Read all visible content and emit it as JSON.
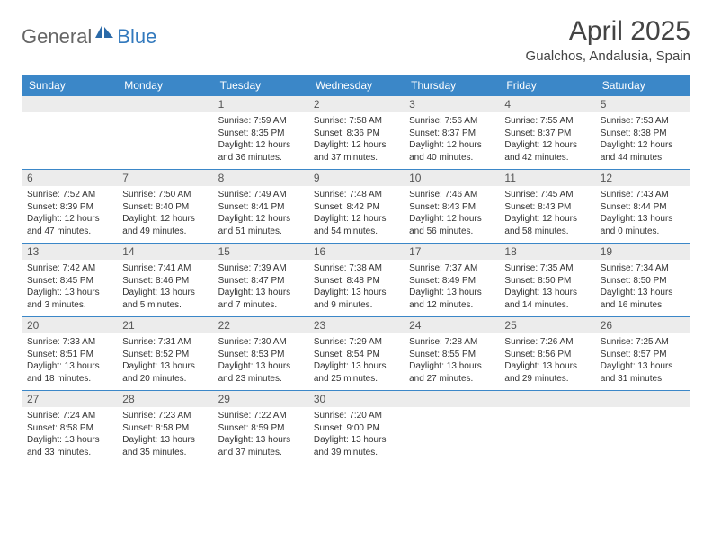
{
  "brand": {
    "part1": "General",
    "part2": "Blue"
  },
  "title": "April 2025",
  "location": "Gualchos, Andalusia, Spain",
  "colors": {
    "header_bg": "#3b87c8",
    "header_text": "#ffffff",
    "daynum_bg": "#ececec",
    "row_border": "#3b87c8",
    "brand_gray": "#666666",
    "brand_blue": "#3279bd",
    "text": "#333333",
    "background": "#ffffff"
  },
  "typography": {
    "title_fontsize": 30,
    "location_fontsize": 15,
    "dayhead_fontsize": 12,
    "daynum_fontsize": 12,
    "detail_fontsize": 10,
    "logo_fontsize": 22
  },
  "day_headers": [
    "Sunday",
    "Monday",
    "Tuesday",
    "Wednesday",
    "Thursday",
    "Friday",
    "Saturday"
  ],
  "weeks": [
    [
      null,
      null,
      {
        "n": "1",
        "sunrise": "Sunrise: 7:59 AM",
        "sunset": "Sunset: 8:35 PM",
        "day1": "Daylight: 12 hours",
        "day2": "and 36 minutes."
      },
      {
        "n": "2",
        "sunrise": "Sunrise: 7:58 AM",
        "sunset": "Sunset: 8:36 PM",
        "day1": "Daylight: 12 hours",
        "day2": "and 37 minutes."
      },
      {
        "n": "3",
        "sunrise": "Sunrise: 7:56 AM",
        "sunset": "Sunset: 8:37 PM",
        "day1": "Daylight: 12 hours",
        "day2": "and 40 minutes."
      },
      {
        "n": "4",
        "sunrise": "Sunrise: 7:55 AM",
        "sunset": "Sunset: 8:37 PM",
        "day1": "Daylight: 12 hours",
        "day2": "and 42 minutes."
      },
      {
        "n": "5",
        "sunrise": "Sunrise: 7:53 AM",
        "sunset": "Sunset: 8:38 PM",
        "day1": "Daylight: 12 hours",
        "day2": "and 44 minutes."
      }
    ],
    [
      {
        "n": "6",
        "sunrise": "Sunrise: 7:52 AM",
        "sunset": "Sunset: 8:39 PM",
        "day1": "Daylight: 12 hours",
        "day2": "and 47 minutes."
      },
      {
        "n": "7",
        "sunrise": "Sunrise: 7:50 AM",
        "sunset": "Sunset: 8:40 PM",
        "day1": "Daylight: 12 hours",
        "day2": "and 49 minutes."
      },
      {
        "n": "8",
        "sunrise": "Sunrise: 7:49 AM",
        "sunset": "Sunset: 8:41 PM",
        "day1": "Daylight: 12 hours",
        "day2": "and 51 minutes."
      },
      {
        "n": "9",
        "sunrise": "Sunrise: 7:48 AM",
        "sunset": "Sunset: 8:42 PM",
        "day1": "Daylight: 12 hours",
        "day2": "and 54 minutes."
      },
      {
        "n": "10",
        "sunrise": "Sunrise: 7:46 AM",
        "sunset": "Sunset: 8:43 PM",
        "day1": "Daylight: 12 hours",
        "day2": "and 56 minutes."
      },
      {
        "n": "11",
        "sunrise": "Sunrise: 7:45 AM",
        "sunset": "Sunset: 8:43 PM",
        "day1": "Daylight: 12 hours",
        "day2": "and 58 minutes."
      },
      {
        "n": "12",
        "sunrise": "Sunrise: 7:43 AM",
        "sunset": "Sunset: 8:44 PM",
        "day1": "Daylight: 13 hours",
        "day2": "and 0 minutes."
      }
    ],
    [
      {
        "n": "13",
        "sunrise": "Sunrise: 7:42 AM",
        "sunset": "Sunset: 8:45 PM",
        "day1": "Daylight: 13 hours",
        "day2": "and 3 minutes."
      },
      {
        "n": "14",
        "sunrise": "Sunrise: 7:41 AM",
        "sunset": "Sunset: 8:46 PM",
        "day1": "Daylight: 13 hours",
        "day2": "and 5 minutes."
      },
      {
        "n": "15",
        "sunrise": "Sunrise: 7:39 AM",
        "sunset": "Sunset: 8:47 PM",
        "day1": "Daylight: 13 hours",
        "day2": "and 7 minutes."
      },
      {
        "n": "16",
        "sunrise": "Sunrise: 7:38 AM",
        "sunset": "Sunset: 8:48 PM",
        "day1": "Daylight: 13 hours",
        "day2": "and 9 minutes."
      },
      {
        "n": "17",
        "sunrise": "Sunrise: 7:37 AM",
        "sunset": "Sunset: 8:49 PM",
        "day1": "Daylight: 13 hours",
        "day2": "and 12 minutes."
      },
      {
        "n": "18",
        "sunrise": "Sunrise: 7:35 AM",
        "sunset": "Sunset: 8:50 PM",
        "day1": "Daylight: 13 hours",
        "day2": "and 14 minutes."
      },
      {
        "n": "19",
        "sunrise": "Sunrise: 7:34 AM",
        "sunset": "Sunset: 8:50 PM",
        "day1": "Daylight: 13 hours",
        "day2": "and 16 minutes."
      }
    ],
    [
      {
        "n": "20",
        "sunrise": "Sunrise: 7:33 AM",
        "sunset": "Sunset: 8:51 PM",
        "day1": "Daylight: 13 hours",
        "day2": "and 18 minutes."
      },
      {
        "n": "21",
        "sunrise": "Sunrise: 7:31 AM",
        "sunset": "Sunset: 8:52 PM",
        "day1": "Daylight: 13 hours",
        "day2": "and 20 minutes."
      },
      {
        "n": "22",
        "sunrise": "Sunrise: 7:30 AM",
        "sunset": "Sunset: 8:53 PM",
        "day1": "Daylight: 13 hours",
        "day2": "and 23 minutes."
      },
      {
        "n": "23",
        "sunrise": "Sunrise: 7:29 AM",
        "sunset": "Sunset: 8:54 PM",
        "day1": "Daylight: 13 hours",
        "day2": "and 25 minutes."
      },
      {
        "n": "24",
        "sunrise": "Sunrise: 7:28 AM",
        "sunset": "Sunset: 8:55 PM",
        "day1": "Daylight: 13 hours",
        "day2": "and 27 minutes."
      },
      {
        "n": "25",
        "sunrise": "Sunrise: 7:26 AM",
        "sunset": "Sunset: 8:56 PM",
        "day1": "Daylight: 13 hours",
        "day2": "and 29 minutes."
      },
      {
        "n": "26",
        "sunrise": "Sunrise: 7:25 AM",
        "sunset": "Sunset: 8:57 PM",
        "day1": "Daylight: 13 hours",
        "day2": "and 31 minutes."
      }
    ],
    [
      {
        "n": "27",
        "sunrise": "Sunrise: 7:24 AM",
        "sunset": "Sunset: 8:58 PM",
        "day1": "Daylight: 13 hours",
        "day2": "and 33 minutes."
      },
      {
        "n": "28",
        "sunrise": "Sunrise: 7:23 AM",
        "sunset": "Sunset: 8:58 PM",
        "day1": "Daylight: 13 hours",
        "day2": "and 35 minutes."
      },
      {
        "n": "29",
        "sunrise": "Sunrise: 7:22 AM",
        "sunset": "Sunset: 8:59 PM",
        "day1": "Daylight: 13 hours",
        "day2": "and 37 minutes."
      },
      {
        "n": "30",
        "sunrise": "Sunrise: 7:20 AM",
        "sunset": "Sunset: 9:00 PM",
        "day1": "Daylight: 13 hours",
        "day2": "and 39 minutes."
      },
      null,
      null,
      null
    ]
  ]
}
